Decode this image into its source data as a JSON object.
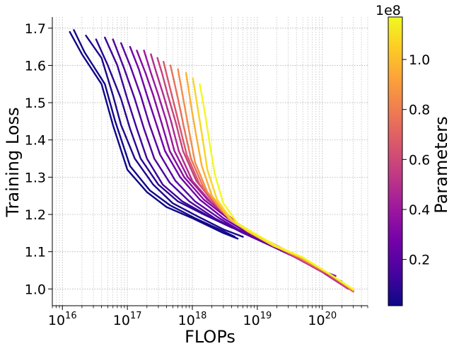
{
  "chart_data": {
    "type": "line",
    "xlabel": "FLOPs",
    "ylabel": "Training Loss",
    "xscale": "log",
    "xlim": [
      7000000000000000.0,
      5e+20
    ],
    "ylim": [
      0.955,
      1.73
    ],
    "grid": true,
    "x_ticks": [
      {
        "value": 1e+16,
        "base": "10",
        "exp": "16"
      },
      {
        "value": 1e+17,
        "base": "10",
        "exp": "17"
      },
      {
        "value": 1e+18,
        "base": "10",
        "exp": "18"
      },
      {
        "value": 1e+19,
        "base": "10",
        "exp": "19"
      },
      {
        "value": 1e+20,
        "base": "10",
        "exp": "20"
      }
    ],
    "y_ticks": [
      {
        "value": 1.0,
        "label": "1.0"
      },
      {
        "value": 1.1,
        "label": "1.1"
      },
      {
        "value": 1.2,
        "label": "1.2"
      },
      {
        "value": 1.3,
        "label": "1.3"
      },
      {
        "value": 1.4,
        "label": "1.4"
      },
      {
        "value": 1.5,
        "label": "1.5"
      },
      {
        "value": 1.6,
        "label": "1.6"
      },
      {
        "value": 1.7,
        "label": "1.7"
      }
    ],
    "colorbar": {
      "label": "Parameters",
      "offset_text": "1e8",
      "colormap": "plasma",
      "min": 1500000.0,
      "max": 117000000.0,
      "ticks": [
        {
          "value": 20000000.0,
          "label": "0.2"
        },
        {
          "value": 40000000.0,
          "label": "0.4"
        },
        {
          "value": 60000000.0,
          "label": "0.6"
        },
        {
          "value": 80000000.0,
          "label": "0.8"
        },
        {
          "value": 100000000.0,
          "label": "1.0"
        }
      ]
    },
    "colormap_stops": [
      "#0d0887",
      "#46039f",
      "#7201a8",
      "#9c179e",
      "#bd3786",
      "#d8576b",
      "#ed7953",
      "#fb9f3a",
      "#fdca26",
      "#f0f921"
    ],
    "series": [
      {
        "params": 2000000.0,
        "x": [
          1.3e+16,
          2e+16,
          4e+16,
          6e+16,
          1e+17,
          2e+17,
          4e+17,
          1e+18,
          3e+18,
          5e+18
        ],
        "y": [
          1.69,
          1.63,
          1.55,
          1.44,
          1.32,
          1.26,
          1.22,
          1.19,
          1.15,
          1.135
        ]
      },
      {
        "params": 3000000.0,
        "x": [
          1.5e+16,
          2.2e+16,
          4.5e+16,
          6.5e+16,
          1.1e+17,
          2.2e+17,
          4.5e+17,
          1.1e+18,
          3e+18,
          4.5e+18
        ],
        "y": [
          1.695,
          1.635,
          1.55,
          1.45,
          1.33,
          1.265,
          1.225,
          1.19,
          1.155,
          1.14
        ]
      },
      {
        "params": 5000000.0,
        "x": [
          2.3e+16,
          4e+16,
          6e+16,
          8e+16,
          1.3e+17,
          2.5e+17,
          5e+17,
          1.2e+18,
          3e+18,
          6e+18
        ],
        "y": [
          1.68,
          1.62,
          1.52,
          1.44,
          1.35,
          1.28,
          1.23,
          1.195,
          1.16,
          1.14
        ]
      },
      {
        "params": 8000000.0,
        "x": [
          3.3e+16,
          5e+16,
          8e+16,
          1.1e+17,
          1.6e+17,
          3e+17,
          6e+17,
          1.5e+18,
          4e+18,
          8e+18
        ],
        "y": [
          1.67,
          1.6,
          1.51,
          1.43,
          1.35,
          1.28,
          1.235,
          1.2,
          1.165,
          1.145
        ]
      },
      {
        "params": 12000000.0,
        "x": [
          4.5e+16,
          7e+16,
          1e+17,
          1.4e+17,
          2e+17,
          3.5e+17,
          7e+17,
          1.8e+18,
          5e+18,
          1.2e+19
        ],
        "y": [
          1.675,
          1.6,
          1.51,
          1.43,
          1.35,
          1.28,
          1.235,
          1.195,
          1.16,
          1.13
        ]
      },
      {
        "params": 16000000.0,
        "x": [
          6e+16,
          9e+16,
          1.3e+17,
          1.8e+17,
          2.6e+17,
          4.5e+17,
          9e+17,
          2.2e+18,
          6e+18,
          1.8e+19
        ],
        "y": [
          1.67,
          1.59,
          1.51,
          1.43,
          1.35,
          1.285,
          1.235,
          1.19,
          1.15,
          1.115
        ]
      },
      {
        "params": 20000000.0,
        "x": [
          8e+16,
          1.1e+17,
          1.6e+17,
          2.2e+17,
          3.2e+17,
          5.5e+17,
          1.1e+18,
          2.6e+18,
          7e+18,
          2.2e+19,
          4.5e+19
        ],
        "y": [
          1.66,
          1.6,
          1.52,
          1.44,
          1.36,
          1.29,
          1.235,
          1.19,
          1.145,
          1.105,
          1.08
        ]
      },
      {
        "params": 26000000.0,
        "x": [
          1.1e+17,
          1.5e+17,
          2e+17,
          2.7e+17,
          3.8e+17,
          6.5e+17,
          1.3e+18,
          3e+18,
          8e+18,
          2.5e+19,
          6e+19
        ],
        "y": [
          1.65,
          1.59,
          1.52,
          1.45,
          1.37,
          1.3,
          1.24,
          1.19,
          1.145,
          1.1,
          1.07
        ]
      },
      {
        "params": 33000000.0,
        "x": [
          1.4e+17,
          1.9e+17,
          2.5e+17,
          3.3e+17,
          4.5e+17,
          7.5e+17,
          1.5e+18,
          3.5e+18,
          9e+18,
          3e+19,
          8e+19,
          1.6e+20
        ],
        "y": [
          1.64,
          1.58,
          1.52,
          1.45,
          1.37,
          1.3,
          1.24,
          1.19,
          1.145,
          1.095,
          1.055,
          1.035
        ]
      },
      {
        "params": 40000000.0,
        "x": [
          1.8e+17,
          2.3e+17,
          3e+17,
          4e+17,
          5.3e+17,
          8.5e+17,
          1.7e+18,
          4e+18,
          1e+19,
          3e+19,
          9e+19,
          2e+20
        ],
        "y": [
          1.64,
          1.58,
          1.52,
          1.45,
          1.37,
          1.3,
          1.24,
          1.185,
          1.14,
          1.095,
          1.05,
          1.02
        ]
      },
      {
        "params": 48000000.0,
        "x": [
          2.3e+17,
          2.8e+17,
          3.6e+17,
          4.7e+17,
          6.2e+17,
          1e+18,
          2e+18,
          4.5e+18,
          1.1e+19,
          3.5e+19,
          1e+20,
          2.5e+20
        ],
        "y": [
          1.63,
          1.58,
          1.52,
          1.45,
          1.37,
          1.29,
          1.23,
          1.18,
          1.14,
          1.09,
          1.045,
          1.0
        ]
      },
      {
        "params": 57000000.0,
        "x": [
          2.9e+17,
          3.4e+17,
          4.2e+17,
          5.5e+17,
          7.2e+17,
          1.15e+18,
          2.3e+18,
          5e+18,
          1.2e+19,
          4e+19,
          1.2e+20,
          3e+20
        ],
        "y": [
          1.62,
          1.58,
          1.52,
          1.45,
          1.37,
          1.29,
          1.225,
          1.175,
          1.135,
          1.085,
          1.04,
          0.993
        ]
      },
      {
        "params": 65000000.0,
        "x": [
          3.6e+17,
          4.1e+17,
          5e+17,
          6.3e+17,
          8.2e+17,
          1.3e+18,
          2.5e+18,
          5.5e+18,
          1.3e+19,
          4e+19,
          1.2e+20,
          3e+20
        ],
        "y": [
          1.61,
          1.57,
          1.51,
          1.44,
          1.36,
          1.28,
          1.22,
          1.17,
          1.13,
          1.085,
          1.04,
          0.993
        ]
      },
      {
        "params": 75000000.0,
        "x": [
          4.6e+17,
          5.2e+17,
          6.2e+17,
          7.5e+17,
          9.5e+17,
          1.5e+18,
          2.8e+18,
          6e+18,
          1.4e+19,
          4.5e+19,
          1.3e+20,
          3e+20
        ],
        "y": [
          1.6,
          1.56,
          1.5,
          1.43,
          1.35,
          1.27,
          1.21,
          1.165,
          1.13,
          1.085,
          1.04,
          0.995
        ]
      },
      {
        "params": 85000000.0,
        "x": [
          6e+17,
          6.6e+17,
          7.6e+17,
          9e+17,
          1.1e+18,
          1.7e+18,
          3.2e+18,
          6.5e+18,
          1.5e+19,
          4.5e+19,
          1.3e+20,
          3e+20
        ],
        "y": [
          1.59,
          1.55,
          1.49,
          1.42,
          1.34,
          1.26,
          1.2,
          1.16,
          1.125,
          1.085,
          1.04,
          0.996
        ]
      },
      {
        "params": 96000000.0,
        "x": [
          8e+17,
          8.7e+17,
          9.8e+17,
          1.15e+18,
          1.4e+18,
          2e+18,
          3.6e+18,
          7e+18,
          1.6e+19,
          4.5e+19,
          1.3e+20,
          3e+20
        ],
        "y": [
          1.58,
          1.54,
          1.48,
          1.41,
          1.33,
          1.25,
          1.19,
          1.155,
          1.12,
          1.085,
          1.04,
          0.997
        ]
      },
      {
        "params": 107000000.0,
        "x": [
          1.02e+18,
          1.1e+18,
          1.25e+18,
          1.45e+18,
          1.7e+18,
          2.4e+18,
          4e+18,
          8e+18,
          1.8e+19,
          5e+19,
          1.3e+20,
          3e+20
        ],
        "y": [
          1.565,
          1.53,
          1.47,
          1.4,
          1.32,
          1.24,
          1.185,
          1.15,
          1.115,
          1.085,
          1.04,
          0.998
        ]
      },
      {
        "params": 117000000.0,
        "x": [
          1.3e+18,
          1.4e+18,
          1.6e+18,
          1.85e+18,
          2.2e+18,
          3e+18,
          5e+18,
          1e+19,
          2e+19,
          5e+19,
          1.3e+20,
          3e+20
        ],
        "y": [
          1.55,
          1.52,
          1.46,
          1.39,
          1.31,
          1.23,
          1.175,
          1.145,
          1.115,
          1.085,
          1.04,
          0.999
        ]
      }
    ]
  }
}
